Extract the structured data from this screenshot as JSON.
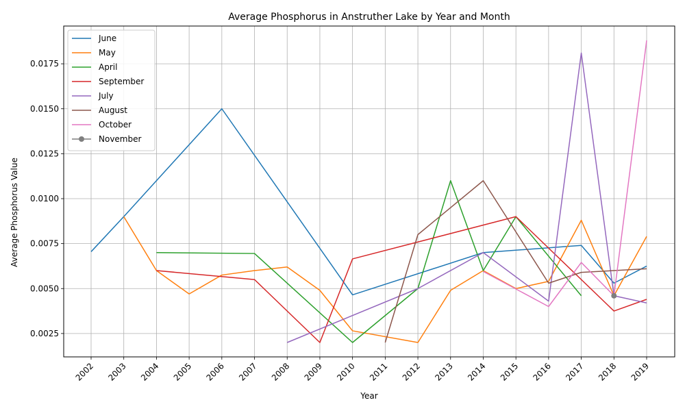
{
  "chart_data": {
    "type": "line",
    "title": "Average Phosphorus in Anstruther Lake by Year and Month",
    "xlabel": "Year",
    "ylabel": "Average Phosphorus Value",
    "x_categories": [
      "2002",
      "2003",
      "2004",
      "2005",
      "2006",
      "2007",
      "2008",
      "2009",
      "2010",
      "2011",
      "2012",
      "2013",
      "2014",
      "2015",
      "2016",
      "2017",
      "2018",
      "2019"
    ],
    "ylim": [
      0.0012,
      0.0196
    ],
    "y_ticks": [
      "0.0025",
      "0.0050",
      "0.0075",
      "0.0100",
      "0.0125",
      "0.0150",
      "0.0175"
    ],
    "grid": true,
    "legend_position": "top-left",
    "series": [
      {
        "name": "June",
        "color": "#1f77b4",
        "marker": false,
        "points": [
          [
            "2002",
            0.00705
          ],
          [
            "2003",
            0.009
          ],
          [
            "2006",
            0.015
          ],
          [
            "2010",
            0.00465
          ],
          [
            "2014",
            0.007
          ],
          [
            "2017",
            0.0074
          ],
          [
            "2018",
            0.0053
          ],
          [
            "2019",
            0.00625
          ]
        ]
      },
      {
        "name": "May",
        "color": "#ff7f0e",
        "marker": false,
        "points": [
          [
            "2003",
            0.009
          ],
          [
            "2004",
            0.006
          ],
          [
            "2005",
            0.0047
          ],
          [
            "2006",
            0.00575
          ],
          [
            "2007",
            0.006
          ],
          [
            "2008",
            0.0062
          ],
          [
            "2009",
            0.0049
          ],
          [
            "2010",
            0.00265
          ],
          [
            "2012",
            0.002
          ],
          [
            "2013",
            0.0049
          ],
          [
            "2014",
            0.006
          ],
          [
            "2015",
            0.005
          ],
          [
            "2016",
            0.0054
          ],
          [
            "2017",
            0.0088
          ],
          [
            "2018",
            0.0046
          ],
          [
            "2019",
            0.0079
          ]
        ]
      },
      {
        "name": "April",
        "color": "#2ca02c",
        "marker": false,
        "points": [
          [
            "2004",
            0.007
          ],
          [
            "2007",
            0.00695
          ],
          [
            "2010",
            0.002
          ],
          [
            "2012",
            0.005
          ],
          [
            "2013",
            0.011
          ],
          [
            "2014",
            0.006
          ],
          [
            "2015",
            0.009
          ],
          [
            "2017",
            0.0046
          ]
        ]
      },
      {
        "name": "September",
        "color": "#d62728",
        "marker": false,
        "points": [
          [
            "2004",
            0.006
          ],
          [
            "2007",
            0.0055
          ],
          [
            "2009",
            0.002
          ],
          [
            "2010",
            0.00665
          ],
          [
            "2015",
            0.009
          ],
          [
            "2018",
            0.00375
          ],
          [
            "2019",
            0.0044
          ]
        ]
      },
      {
        "name": "July",
        "color": "#9467bd",
        "marker": false,
        "points": [
          [
            "2008",
            0.002
          ],
          [
            "2012",
            0.005
          ],
          [
            "2014",
            0.007
          ],
          [
            "2016",
            0.0043
          ],
          [
            "2017",
            0.0181
          ],
          [
            "2018",
            0.0046
          ],
          [
            "2019",
            0.0042
          ]
        ]
      },
      {
        "name": "August",
        "color": "#8c564b",
        "marker": false,
        "points": [
          [
            "2011",
            0.002
          ],
          [
            "2012",
            0.008
          ],
          [
            "2014",
            0.011
          ],
          [
            "2016",
            0.0053
          ],
          [
            "2017",
            0.0059
          ],
          [
            "2019",
            0.0061
          ]
        ]
      },
      {
        "name": "October",
        "color": "#e377c2",
        "marker": false,
        "points": [
          [
            "2014",
            0.00595
          ],
          [
            "2016",
            0.004
          ],
          [
            "2017",
            0.00645
          ],
          [
            "2018",
            0.0046
          ],
          [
            "2019",
            0.0188
          ]
        ]
      },
      {
        "name": "November",
        "color": "#7f7f7f",
        "marker": true,
        "points": [
          [
            "2018",
            0.0046
          ]
        ]
      }
    ]
  }
}
